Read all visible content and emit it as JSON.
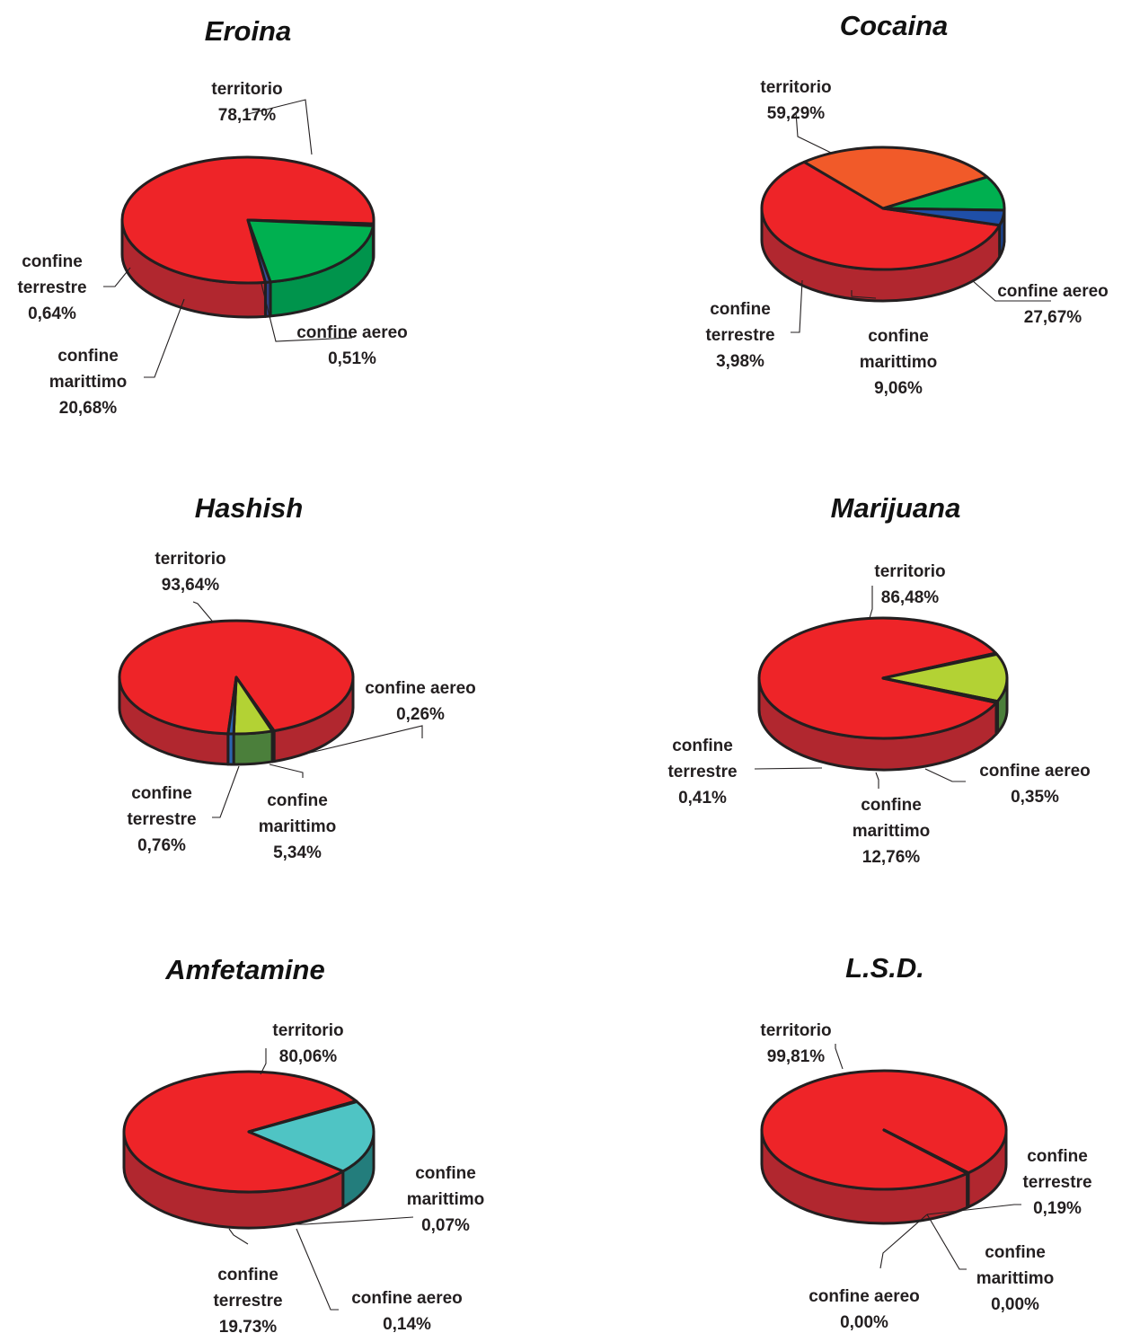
{
  "chart_data": [
    {
      "type": "pie",
      "title": "Eroina",
      "slices": [
        {
          "name": "territorio",
          "value": 78.17,
          "value_label": "78,17%",
          "color": "#ee2428",
          "side": "#b1272f"
        },
        {
          "name": "confine aereo",
          "value": 0.51,
          "value_label": "0,51%",
          "color": "#00a650",
          "side": "#00914a"
        },
        {
          "name": "confine marittimo",
          "value": 20.68,
          "value_label": "20,68%",
          "color": "#00b050",
          "side": "#00944c"
        },
        {
          "name": "confine terrestre",
          "value": 0.64,
          "value_label": "0,64%",
          "color": "#3a4fa0",
          "side": "#2e3f80"
        }
      ]
    },
    {
      "type": "pie",
      "title": "Cocaina",
      "slices": [
        {
          "name": "territorio",
          "value": 59.29,
          "value_label": "59,29%",
          "color": "#ee2428",
          "side": "#b1272f"
        },
        {
          "name": "confine aereo",
          "value": 27.67,
          "value_label": "27,67%",
          "color": "#f15a29",
          "side": "#a83c2e"
        },
        {
          "name": "confine marittimo",
          "value": 9.06,
          "value_label": "9,06%",
          "color": "#00b050",
          "side": "#00944c"
        },
        {
          "name": "confine terrestre",
          "value": 3.98,
          "value_label": "3,98%",
          "color": "#1f4fa8",
          "side": "#1a4596"
        }
      ]
    },
    {
      "type": "pie",
      "title": "Hashish",
      "slices": [
        {
          "name": "territorio",
          "value": 93.64,
          "value_label": "93,64%",
          "color": "#ee2428",
          "side": "#b1272f"
        },
        {
          "name": "confine aereo",
          "value": 0.26,
          "value_label": "0,26%",
          "color": "#a8cf38",
          "side": "#4a7a35"
        },
        {
          "name": "confine marittimo",
          "value": 5.34,
          "value_label": "5,34%",
          "color": "#b3d234",
          "side": "#4b7f3b"
        },
        {
          "name": "confine terrestre",
          "value": 0.76,
          "value_label": "0,76%",
          "color": "#2a64b0",
          "side": "#2a64b0"
        }
      ]
    },
    {
      "type": "pie",
      "title": "Marijuana",
      "slices": [
        {
          "name": "territorio",
          "value": 86.48,
          "value_label": "86,48%",
          "color": "#ee2428",
          "side": "#b1272f"
        },
        {
          "name": "confine aereo",
          "value": 0.35,
          "value_label": "0,35%",
          "color": "#a8cf38",
          "side": "#4a7a35"
        },
        {
          "name": "confine marittimo",
          "value": 12.76,
          "value_label": "12,76%",
          "color": "#b3d234",
          "side": "#4b7f3b"
        },
        {
          "name": "confine terrestre",
          "value": 0.41,
          "value_label": "0,41%",
          "color": "#a8cf38",
          "side": "#4a7a35"
        }
      ]
    },
    {
      "type": "pie",
      "title": "Amfetamine",
      "slices": [
        {
          "name": "territorio",
          "value": 80.06,
          "value_label": "80,06%",
          "color": "#ee2428",
          "side": "#b1272f"
        },
        {
          "name": "confine aereo",
          "value": 0.14,
          "value_label": "0,14%",
          "color": "#4fc4c4",
          "side": "#1f7a78"
        },
        {
          "name": "confine marittimo",
          "value": 0.07,
          "value_label": "0,07%",
          "color": "#4fc4c4",
          "side": "#1f7a78"
        },
        {
          "name": "confine terrestre",
          "value": 19.73,
          "value_label": "19,73%",
          "color": "#4fc4c4",
          "side": "#237d7c"
        }
      ]
    },
    {
      "type": "pie",
      "title": "L.S.D.",
      "slices": [
        {
          "name": "territorio",
          "value": 99.81,
          "value_label": "99,81%",
          "color": "#ee2428",
          "side": "#b1272f"
        },
        {
          "name": "confine aereo",
          "value": 0.0,
          "value_label": "0,00%",
          "color": "#ee2428",
          "side": "#b1272f"
        },
        {
          "name": "confine marittimo",
          "value": 0.0,
          "value_label": "0,00%",
          "color": "#ee2428",
          "side": "#b1272f"
        },
        {
          "name": "confine terrestre",
          "value": 0.19,
          "value_label": "0,19%",
          "color": "#ee2428",
          "side": "#b1272f"
        }
      ]
    }
  ]
}
